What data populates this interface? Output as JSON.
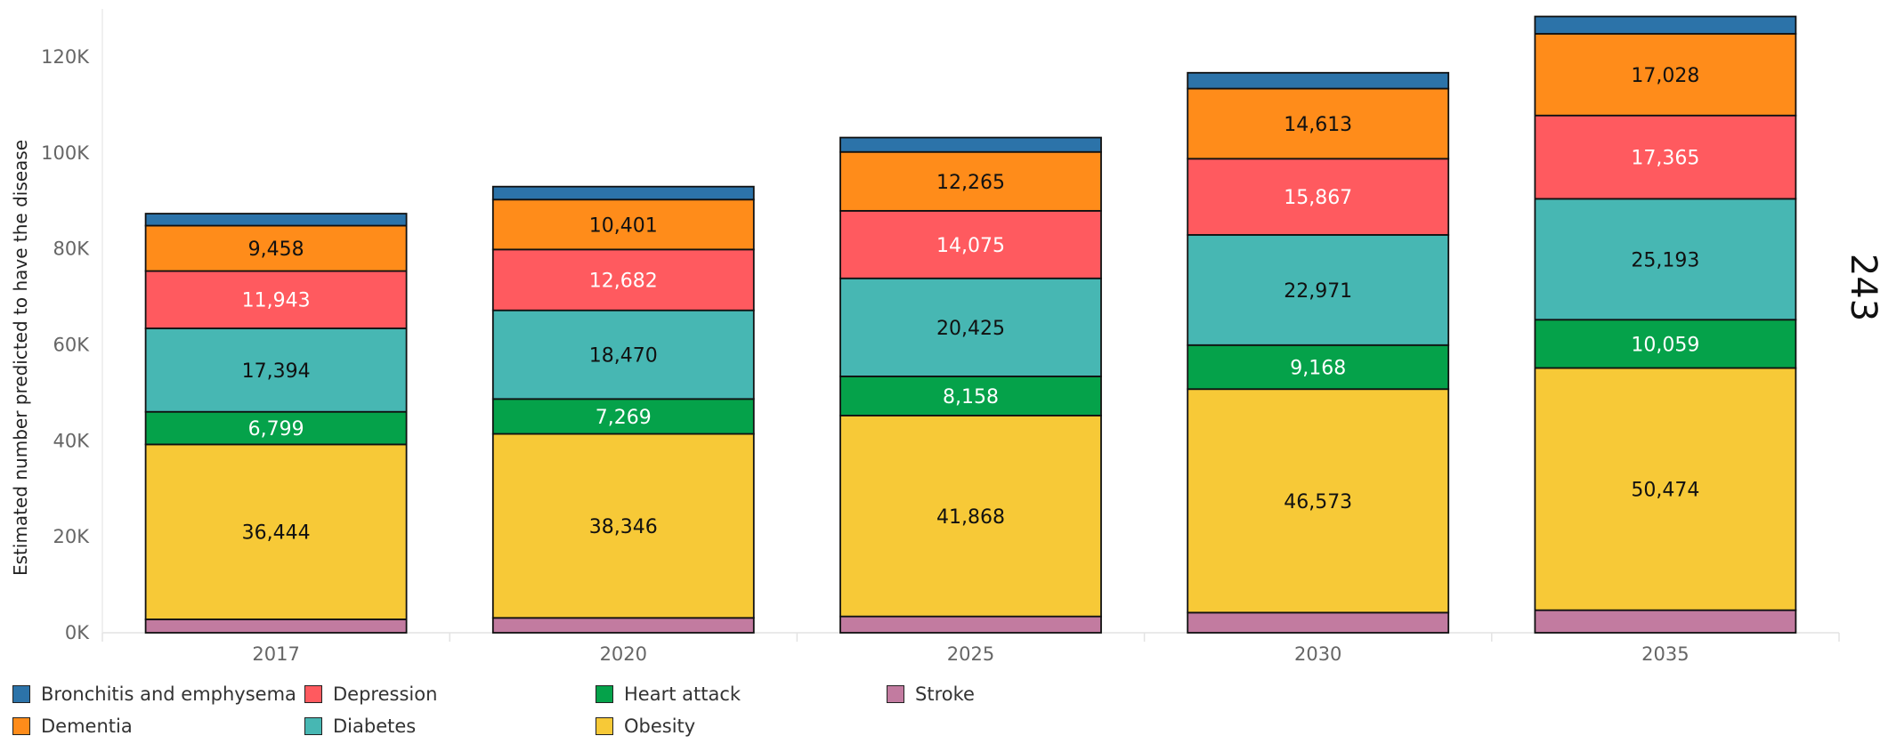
{
  "chart_data": {
    "type": "bar",
    "stacked": true,
    "categories": [
      "2017",
      "2020",
      "2025",
      "2030",
      "2035"
    ],
    "ylabel": "Estimated number predicted to have the disease",
    "xlabel": "",
    "ylim": [
      0,
      130000
    ],
    "yticks": [
      {
        "value": 0,
        "label": "0K"
      },
      {
        "value": 20000,
        "label": "20K"
      },
      {
        "value": 40000,
        "label": "40K"
      },
      {
        "value": 60000,
        "label": "60K"
      },
      {
        "value": 80000,
        "label": "80K"
      },
      {
        "value": 100000,
        "label": "100K"
      },
      {
        "value": 120000,
        "label": "120K"
      }
    ],
    "grid": false,
    "legend_position": "bottom",
    "series": [
      {
        "name": "Stroke",
        "color": "#C27BA0",
        "values": [
          2800,
          3100,
          3400,
          4200,
          4700
        ],
        "labels": [
          "",
          "",
          "",
          "",
          ""
        ],
        "label_color": "#111111"
      },
      {
        "name": "Obesity",
        "color": "#F7C937",
        "values": [
          36444,
          38346,
          41868,
          46573,
          50474
        ],
        "labels": [
          "36,444",
          "38,346",
          "41,868",
          "46,573",
          "50,474"
        ],
        "label_color": "#111111"
      },
      {
        "name": "Heart attack",
        "color": "#05A24A",
        "values": [
          6799,
          7269,
          8158,
          9168,
          10059
        ],
        "labels": [
          "6,799",
          "7,269",
          "8,158",
          "9,168",
          "10,059"
        ],
        "label_color": "#FFFFFF"
      },
      {
        "name": "Diabetes",
        "color": "#47B7B3",
        "values": [
          17394,
          18470,
          20425,
          22971,
          25193
        ],
        "labels": [
          "17,394",
          "18,470",
          "20,425",
          "22,971",
          "25,193"
        ],
        "label_color": "#111111"
      },
      {
        "name": "Depression",
        "color": "#FF5A5F",
        "values": [
          11943,
          12682,
          14075,
          15867,
          17365
        ],
        "labels": [
          "11,943",
          "12,682",
          "14,075",
          "15,867",
          "17,365"
        ],
        "label_color": "#FFFFFF"
      },
      {
        "name": "Dementia",
        "color": "#FF8C1A",
        "values": [
          9458,
          10401,
          12265,
          14613,
          17028
        ],
        "labels": [
          "9,458",
          "10,401",
          "12,265",
          "14,613",
          "17,028"
        ],
        "label_color": "#111111"
      },
      {
        "name": "Bronchitis and emphysema",
        "color": "#2C73A9",
        "values": [
          2500,
          2700,
          3000,
          3300,
          3600
        ],
        "labels": [
          "",
          "",
          "",
          "",
          ""
        ],
        "label_color": "#FFFFFF"
      }
    ]
  },
  "legend": {
    "items": [
      {
        "name": "Bronchitis and emphysema",
        "color": "#2C73A9"
      },
      {
        "name": "Dementia",
        "color": "#FF8C1A"
      },
      {
        "name": "Depression",
        "color": "#FF5A5F"
      },
      {
        "name": "Diabetes",
        "color": "#47B7B3"
      },
      {
        "name": "Heart attack",
        "color": "#05A24A"
      },
      {
        "name": "Obesity",
        "color": "#F7C937"
      },
      {
        "name": "Stroke",
        "color": "#C27BA0"
      }
    ]
  },
  "page": {
    "number": "243"
  }
}
